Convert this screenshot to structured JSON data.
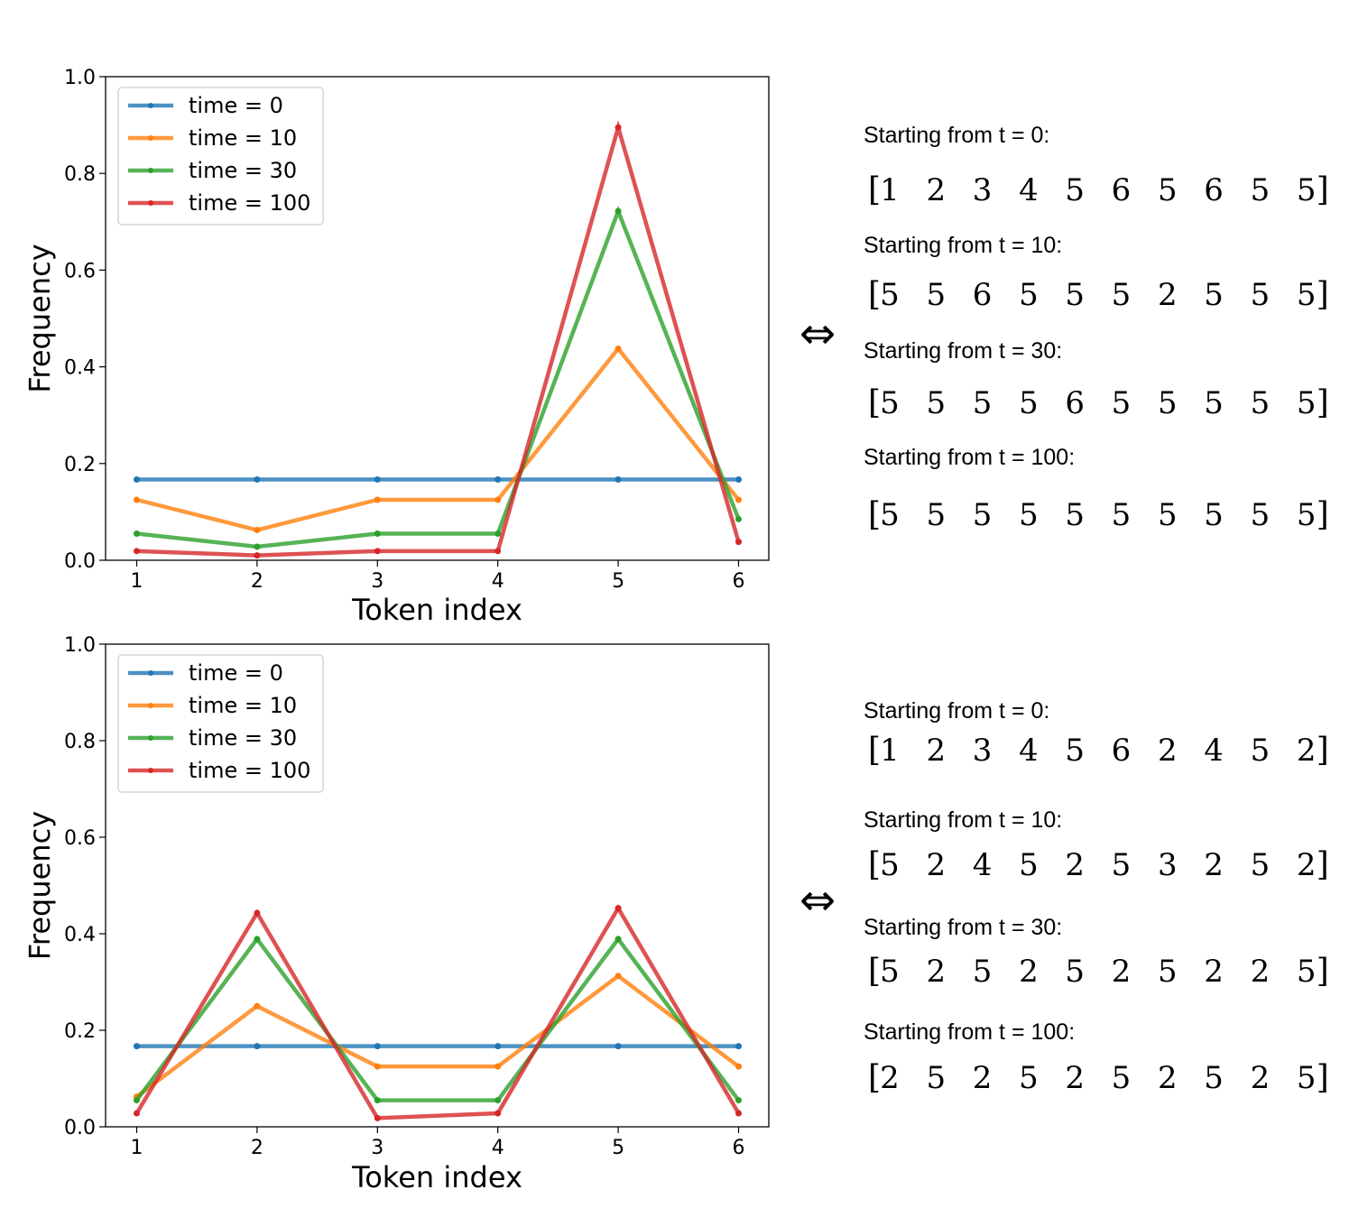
{
  "colors": {
    "t0": "#1f77b4",
    "t10": "#ff7f0e",
    "t30": "#2ca02c",
    "t100": "#d62728",
    "highlight_token": "#c55a11",
    "plain_token": "#000000"
  },
  "chart_data": [
    {
      "type": "line",
      "title": "",
      "xlabel": "Token index",
      "ylabel": "Frequency",
      "x": [
        1,
        2,
        3,
        4,
        5,
        6
      ],
      "xticks": [
        "1",
        "2",
        "3",
        "4",
        "5",
        "6"
      ],
      "yticks": [
        "0.0",
        "0.2",
        "0.4",
        "0.6",
        "0.8",
        "1.0"
      ],
      "ylim": [
        0,
        1
      ],
      "grid": false,
      "legend_position": "top-left",
      "series": [
        {
          "name": "time = 0",
          "color_key": "t0",
          "values": [
            0.167,
            0.167,
            0.167,
            0.167,
            0.167,
            0.167
          ]
        },
        {
          "name": "time = 10",
          "color_key": "t10",
          "values": [
            0.125,
            0.0625,
            0.125,
            0.125,
            0.4375,
            0.125
          ]
        },
        {
          "name": "time = 30",
          "color_key": "t30",
          "values": [
            0.055,
            0.028,
            0.055,
            0.055,
            0.722,
            0.085
          ]
        },
        {
          "name": "time = 100",
          "color_key": "t100",
          "values": [
            0.019,
            0.01,
            0.019,
            0.019,
            0.895,
            0.038
          ]
        }
      ]
    },
    {
      "type": "line",
      "title": "",
      "xlabel": "Token index",
      "ylabel": "Frequency",
      "x": [
        1,
        2,
        3,
        4,
        5,
        6
      ],
      "xticks": [
        "1",
        "2",
        "3",
        "4",
        "5",
        "6"
      ],
      "yticks": [
        "0.0",
        "0.2",
        "0.4",
        "0.6",
        "0.8",
        "1.0"
      ],
      "ylim": [
        0,
        1
      ],
      "grid": false,
      "legend_position": "top-left",
      "series": [
        {
          "name": "time = 0",
          "color_key": "t0",
          "values": [
            0.167,
            0.167,
            0.167,
            0.167,
            0.167,
            0.167
          ]
        },
        {
          "name": "time = 10",
          "color_key": "t10",
          "values": [
            0.0625,
            0.25,
            0.125,
            0.125,
            0.3125,
            0.125
          ]
        },
        {
          "name": "time = 30",
          "color_key": "t30",
          "values": [
            0.055,
            0.389,
            0.055,
            0.055,
            0.389,
            0.055
          ]
        },
        {
          "name": "time = 100",
          "color_key": "t100",
          "values": [
            0.028,
            0.443,
            0.018,
            0.028,
            0.453,
            0.028
          ]
        }
      ]
    }
  ],
  "sequence_groups": [
    {
      "symbol": "⇔",
      "rows": [
        {
          "label": "Starting from t = 0:",
          "tokens": [
            "1",
            "2",
            "3",
            "4",
            "5",
            "6",
            "5",
            "6",
            "5",
            "5"
          ],
          "highlight": [
            false,
            false,
            false,
            false,
            true,
            false,
            true,
            false,
            true,
            true
          ]
        },
        {
          "label": "Starting from t = 10:",
          "tokens": [
            "5",
            "5",
            "6",
            "5",
            "5",
            "5",
            "2",
            "5",
            "5",
            "5"
          ],
          "highlight": [
            true,
            true,
            false,
            true,
            true,
            true,
            false,
            true,
            true,
            true
          ]
        },
        {
          "label": "Starting from t = 30:",
          "tokens": [
            "5",
            "5",
            "5",
            "5",
            "6",
            "5",
            "5",
            "5",
            "5",
            "5"
          ],
          "highlight": [
            true,
            true,
            true,
            true,
            false,
            true,
            true,
            true,
            true,
            true
          ]
        },
        {
          "label": "Starting from t = 100:",
          "tokens": [
            "5",
            "5",
            "5",
            "5",
            "5",
            "5",
            "5",
            "5",
            "5",
            "5"
          ],
          "highlight": [
            true,
            true,
            true,
            true,
            true,
            true,
            true,
            true,
            true,
            true
          ]
        }
      ]
    },
    {
      "symbol": "⇔",
      "rows": [
        {
          "label": "Starting from t = 0:",
          "tokens": [
            "1",
            "2",
            "3",
            "4",
            "5",
            "6",
            "2",
            "4",
            "5",
            "2"
          ],
          "highlight": [
            false,
            true,
            false,
            false,
            true,
            false,
            true,
            false,
            true,
            true
          ]
        },
        {
          "label": "Starting from t = 10:",
          "tokens": [
            "5",
            "2",
            "4",
            "5",
            "2",
            "5",
            "3",
            "2",
            "5",
            "2"
          ],
          "highlight": [
            true,
            true,
            false,
            true,
            true,
            true,
            false,
            true,
            true,
            true
          ]
        },
        {
          "label": "Starting from t = 30:",
          "tokens": [
            "5",
            "2",
            "5",
            "2",
            "5",
            "2",
            "5",
            "2",
            "2",
            "5"
          ],
          "highlight": [
            true,
            true,
            true,
            true,
            true,
            true,
            true,
            true,
            true,
            true
          ]
        },
        {
          "label": "Starting from t = 100:",
          "tokens": [
            "2",
            "5",
            "2",
            "5",
            "2",
            "5",
            "2",
            "5",
            "2",
            "5"
          ],
          "highlight": [
            true,
            true,
            true,
            true,
            true,
            true,
            true,
            true,
            true,
            true
          ]
        }
      ]
    }
  ]
}
